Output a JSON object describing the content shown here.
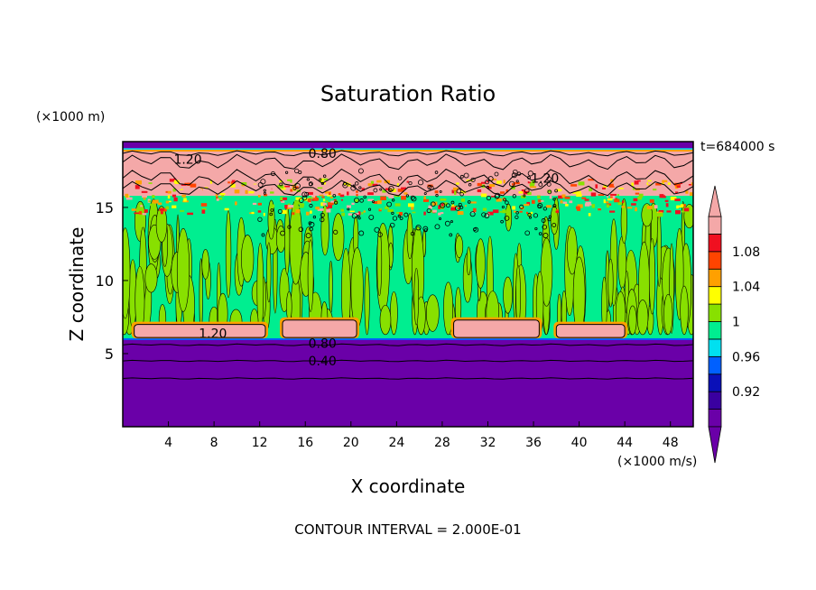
{
  "chart_data": {
    "type": "heatmap",
    "title": "Saturation Ratio",
    "xlabel": "X coordinate",
    "ylabel": "Z coordinate",
    "x_unit": "(×1000 m/s)",
    "y_unit": "(×1000 m)",
    "time_label": "t=684000 s",
    "footer": "CONTOUR INTERVAL = 2.000E-01",
    "xlim": [
      0,
      50
    ],
    "ylim": [
      0,
      19.5
    ],
    "x_ticks": [
      4,
      8,
      12,
      16,
      20,
      24,
      28,
      32,
      36,
      40,
      44,
      48
    ],
    "y_ticks": [
      5,
      10,
      15
    ],
    "colorbar": {
      "bands": [
        {
          "color": "#6a00a8"
        },
        {
          "color": "#3a00a0"
        },
        {
          "color": "#0a10b8"
        },
        {
          "color": "#0060ff"
        },
        {
          "color": "#00e0f0"
        },
        {
          "color": "#00ee90"
        },
        {
          "color": "#88e000"
        },
        {
          "color": "#ffff00"
        },
        {
          "color": "#ffa000"
        },
        {
          "color": "#ff4400"
        },
        {
          "color": "#f01020"
        },
        {
          "color": "#f4a8a8"
        }
      ],
      "labels": [
        {
          "value": "0.92",
          "band": 1
        },
        {
          "value": "0.96",
          "band": 3
        },
        {
          "value": "1",
          "band": 5
        },
        {
          "value": "1.04",
          "band": 7
        },
        {
          "value": "1.08",
          "band": 9
        }
      ]
    },
    "layers": [
      {
        "name": "troposphere-green",
        "z0": 6.0,
        "z1": 15.8,
        "color": "#00ee90"
      },
      {
        "name": "upper-pink",
        "z0": 15.8,
        "z1": 18.9,
        "color": "#f4a8a8"
      },
      {
        "name": "top-purple",
        "z0": 18.9,
        "z1": 19.5,
        "color": "#6a00a8"
      },
      {
        "name": "bottom-purple",
        "z0": 0,
        "z1": 6.0,
        "color": "#6a00a8"
      }
    ],
    "cloud_blocks": [
      {
        "x0": 1.0,
        "x1": 12.5,
        "z0": 6.1,
        "z1": 7.0
      },
      {
        "x0": 14.0,
        "x1": 20.5,
        "z0": 6.1,
        "z1": 7.3
      },
      {
        "x0": 29.0,
        "x1": 36.5,
        "z0": 6.1,
        "z1": 7.3
      },
      {
        "x0": 38.0,
        "x1": 44.0,
        "z0": 6.1,
        "z1": 7.0
      }
    ],
    "contours": [
      {
        "label": "1.20",
        "x": 5.7,
        "z": 18.3
      },
      {
        "label": "0.80",
        "x": 17.5,
        "z": 18.7
      },
      {
        "label": "1.20",
        "x": 37.0,
        "z": 17.0
      },
      {
        "label": "1.20",
        "x": 7.9,
        "z": 6.4
      },
      {
        "label": "0.80",
        "x": 17.5,
        "z": 5.7
      },
      {
        "label": "0.40",
        "x": 17.5,
        "z": 4.5
      }
    ]
  }
}
